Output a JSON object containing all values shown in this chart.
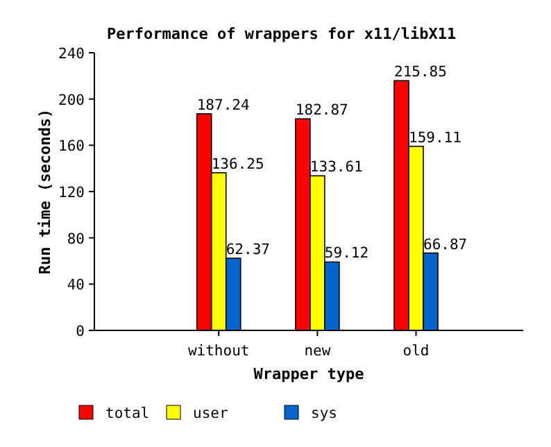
{
  "chart_data": {
    "type": "bar",
    "title": "Performance of wrappers for x11/libX11",
    "xlabel": "Wrapper type",
    "ylabel": "Run time (seconds)",
    "categories": [
      "without",
      "new",
      "old"
    ],
    "series": [
      {
        "name": "total",
        "color": "#ff0000",
        "values": [
          187.24,
          182.87,
          215.85
        ]
      },
      {
        "name": "user",
        "color": "#ffff00",
        "values": [
          136.25,
          133.61,
          159.11
        ]
      },
      {
        "name": "sys",
        "color": "#0066cc",
        "values": [
          62.37,
          59.12,
          66.87
        ]
      }
    ],
    "ylim": [
      0,
      240
    ],
    "yticks": [
      0,
      40,
      80,
      120,
      160,
      200,
      240
    ],
    "data_labels": true,
    "legend": "bottom",
    "grid": false
  }
}
